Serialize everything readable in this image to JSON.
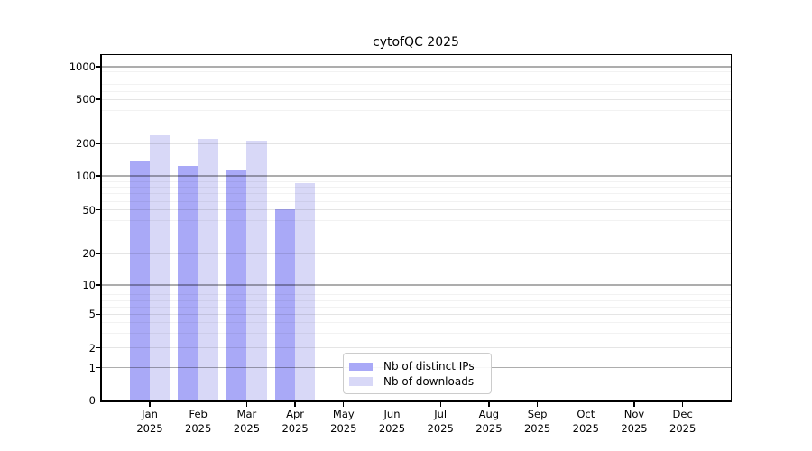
{
  "title": "cytofQC 2025",
  "chart_data": {
    "type": "bar",
    "title": "cytofQC 2025",
    "xlabel": "",
    "ylabel": "",
    "x_tick_second_line": "2025",
    "categories": [
      "Jan 2025",
      "Feb 2025",
      "Mar 2025",
      "Apr 2025",
      "May 2025",
      "Jun 2025",
      "Jul 2025",
      "Aug 2025",
      "Sep 2025",
      "Oct 2025",
      "Nov 2025",
      "Dec 2025"
    ],
    "months": [
      "Jan",
      "Feb",
      "Mar",
      "Apr",
      "May",
      "Jun",
      "Jul",
      "Aug",
      "Sep",
      "Oct",
      "Nov",
      "Dec"
    ],
    "series": [
      {
        "name": "Nb of distinct IPs",
        "color": "#a9a9f7",
        "values": [
          137,
          125,
          114,
          51,
          null,
          null,
          null,
          null,
          null,
          null,
          null,
          null
        ]
      },
      {
        "name": "Nb of downloads",
        "color": "#d8d8f7",
        "values": [
          237,
          219,
          212,
          87,
          null,
          null,
          null,
          null,
          null,
          null,
          null,
          null
        ]
      }
    ],
    "y_axis": {
      "scale": "log-like (symlog with 0 baseline)",
      "ticks": [
        0,
        1,
        2,
        5,
        10,
        20,
        50,
        100,
        200,
        500,
        1000
      ],
      "major_grid_ticks": [
        1,
        10,
        100,
        1000
      ],
      "minor_grid_values": [
        3,
        4,
        6,
        7,
        8,
        9,
        30,
        40,
        60,
        70,
        80,
        90,
        300,
        400,
        600,
        700,
        800,
        900
      ],
      "ylim": [
        0,
        1320
      ]
    },
    "grid": "horizontal gridlines drawn above bars",
    "legend_position": "inside plot, lower middle",
    "colors": {
      "distinct_ips": "#a9a9f7",
      "downloads": "#d8d8f7",
      "grid_major": "#b0b0b0",
      "grid_light": "#e6e6e6",
      "spine": "#000000",
      "background": "#ffffff",
      "legend_border": "#cccccc"
    }
  }
}
